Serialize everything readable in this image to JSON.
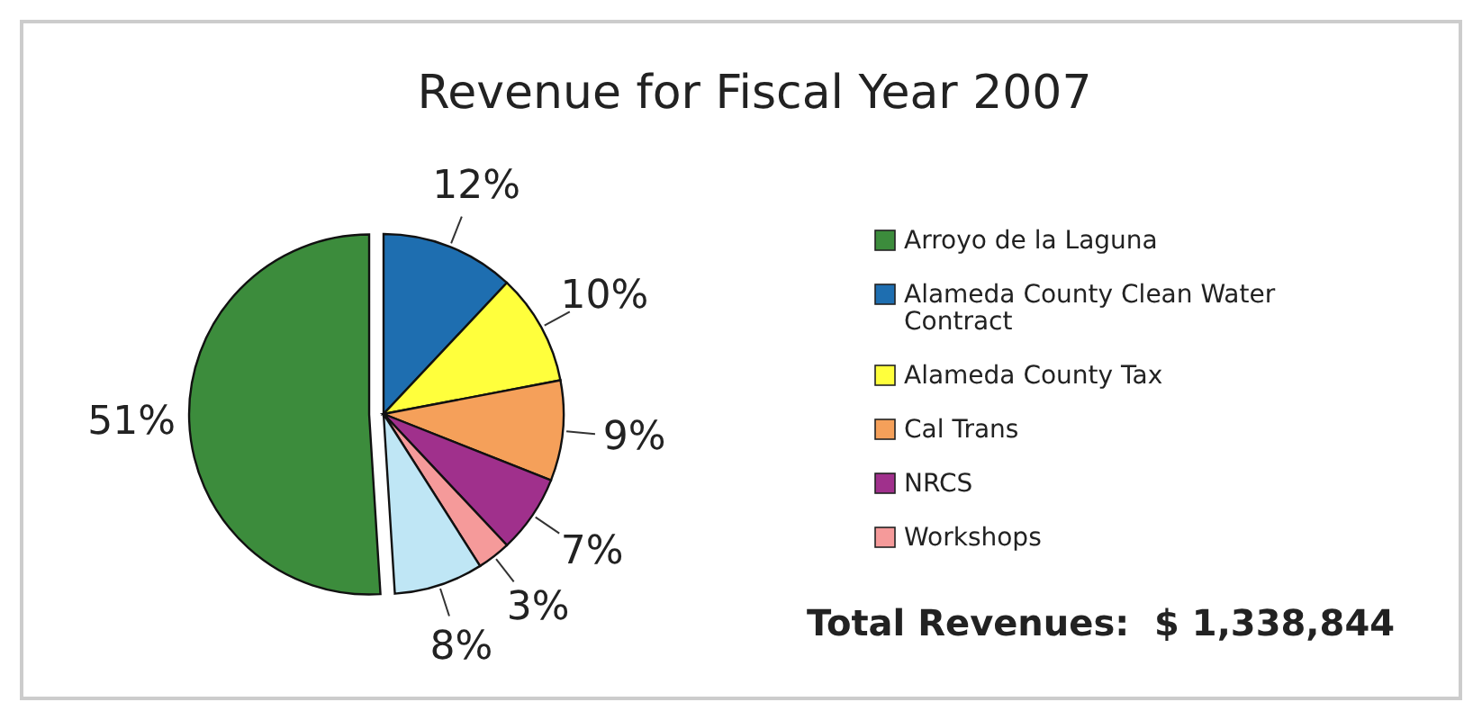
{
  "chart_data": {
    "type": "pie",
    "title": "Revenue for Fiscal Year 2007",
    "categories": [
      "Arroyo de la Laguna",
      "Alameda County Clean Water Contract",
      "Alameda County Tax",
      "Cal Trans",
      "NRCS",
      "Workshops",
      null
    ],
    "values": [
      51,
      12,
      10,
      9,
      7,
      3,
      8
    ],
    "value_labels": [
      "51%",
      "12%",
      "10%",
      "9%",
      "7%",
      "3%",
      "8%"
    ],
    "colors": [
      "#3c8c3c",
      "#1e6eb0",
      "#ffff3c",
      "#f5a05a",
      "#a0308c",
      "#f59a9a",
      "#bfe6f5"
    ],
    "legend": "right",
    "annotations": [
      "Total Revenues:  $ 1,338,844"
    ]
  }
}
